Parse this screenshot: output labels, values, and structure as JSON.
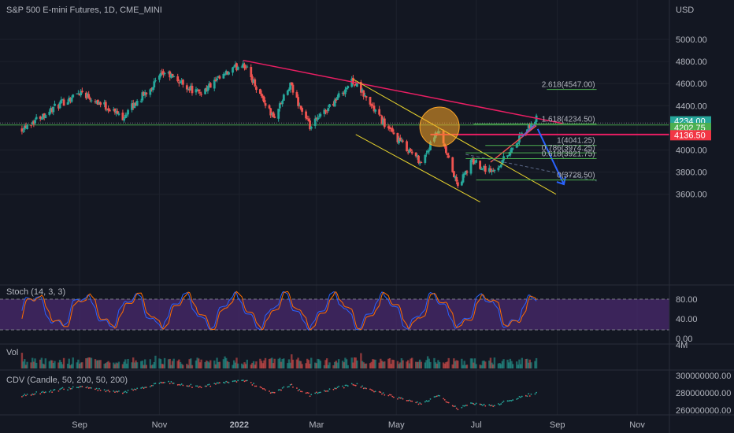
{
  "header": {
    "symbol_title": "S&P 500 E-mini Futures, 1D, CME_MINI",
    "currency": "USD"
  },
  "colors": {
    "background": "#131722",
    "up": "#26a69a",
    "down": "#ef5350",
    "trendline_pink": "#e91e63",
    "channel_yellow": "#e6d22d",
    "fib_green": "#4caf50",
    "forecast_blue": "#2962ff",
    "stoch_band": "#4a2a6e"
  },
  "price_axis": {
    "ticks": [
      {
        "value": 5000,
        "label": "5000.00"
      },
      {
        "value": 4800,
        "label": "4800.00"
      },
      {
        "value": 4600,
        "label": "4600.00"
      },
      {
        "value": 4400,
        "label": "4400.00"
      },
      {
        "value": 4000,
        "label": "4000.00"
      },
      {
        "value": 3800,
        "label": "3800.00"
      },
      {
        "value": 3600,
        "label": "3600.00"
      }
    ],
    "tags": [
      {
        "label": "4234.00",
        "value": 4234.0,
        "color": "#26a69a"
      },
      {
        "label": "05:42:22",
        "value": 4215.0,
        "color": "#26a69a"
      },
      {
        "label": "4202.75",
        "value": 4202.75,
        "color": "#4caf50"
      },
      {
        "label": "4136.50",
        "value": 4136.5,
        "color": "#f23645"
      }
    ]
  },
  "fib_levels": [
    {
      "label": "2.618(4547.00)",
      "value": 4547.0
    },
    {
      "label": "1.618(4234.50)",
      "value": 4234.5
    },
    {
      "label": "1(4041.25)",
      "value": 4041.25
    },
    {
      "label": "0.786(3974.25)",
      "value": 3974.25
    },
    {
      "label": "0.618(3921.75)",
      "value": 3921.75
    },
    {
      "label": "0(3728.50)",
      "value": 3728.5
    }
  ],
  "time_axis": {
    "labels": [
      {
        "label": "Sep",
        "bold": false
      },
      {
        "label": "Nov",
        "bold": false
      },
      {
        "label": "2022",
        "bold": true
      },
      {
        "label": "Mar",
        "bold": false
      },
      {
        "label": "May",
        "bold": false
      },
      {
        "label": "Jul",
        "bold": false
      },
      {
        "label": "Sep",
        "bold": false
      },
      {
        "label": "Nov",
        "bold": false
      }
    ]
  },
  "stoch": {
    "title": "Stoch (14, 3, 3)",
    "ticks": [
      "80.00",
      "40.00",
      "0.00"
    ]
  },
  "volume": {
    "title": "Vol",
    "scale_label": "4M"
  },
  "cdv": {
    "title": "CDV (Candle, 50, 200, 50, 200)",
    "ticks": [
      "300000000.00",
      "280000000.00",
      "260000000.00"
    ]
  },
  "chart_data": {
    "type": "candlestick",
    "title": "S&P 500 E-mini Futures, 1D, CME_MINI",
    "xlabel": "",
    "ylabel": "USD",
    "ylim": [
      3500,
      5100
    ],
    "x_ticks": [
      "Sep",
      "Nov",
      "2022",
      "Mar",
      "May",
      "Jul",
      "Sep",
      "Nov"
    ],
    "anchors": [
      {
        "date": "2021-07-19",
        "close": 4200
      },
      {
        "date": "2021-09-02",
        "close": 4530
      },
      {
        "date": "2021-10-04",
        "close": 4300
      },
      {
        "date": "2021-11-05",
        "close": 4700
      },
      {
        "date": "2021-12-01",
        "close": 4510
      },
      {
        "date": "2022-01-04",
        "close": 4790
      },
      {
        "date": "2022-01-27",
        "close": 4290
      },
      {
        "date": "2022-02-09",
        "close": 4580
      },
      {
        "date": "2022-02-24",
        "close": 4200
      },
      {
        "date": "2022-03-29",
        "close": 4630
      },
      {
        "date": "2022-04-26",
        "close": 4170
      },
      {
        "date": "2022-05-20",
        "close": 3890
      },
      {
        "date": "2022-06-02",
        "close": 4170
      },
      {
        "date": "2022-06-17",
        "close": 3670
      },
      {
        "date": "2022-06-28",
        "close": 3900
      },
      {
        "date": "2022-07-14",
        "close": 3800
      },
      {
        "date": "2022-08-16",
        "close": 4290
      }
    ],
    "annotations": {
      "downtrend_line": [
        {
          "date": "2022-01-04",
          "value": 4810
        },
        {
          "date": "2022-09-05",
          "value": 4240
        }
      ],
      "resistance_line": {
        "value": 4234.5
      },
      "support_box_line": {
        "value": 4136.5
      },
      "forecast_arrow": [
        {
          "date": "2022-08-17",
          "value": 4190
        },
        {
          "date": "2022-09-06",
          "value": 3690
        }
      ]
    }
  }
}
